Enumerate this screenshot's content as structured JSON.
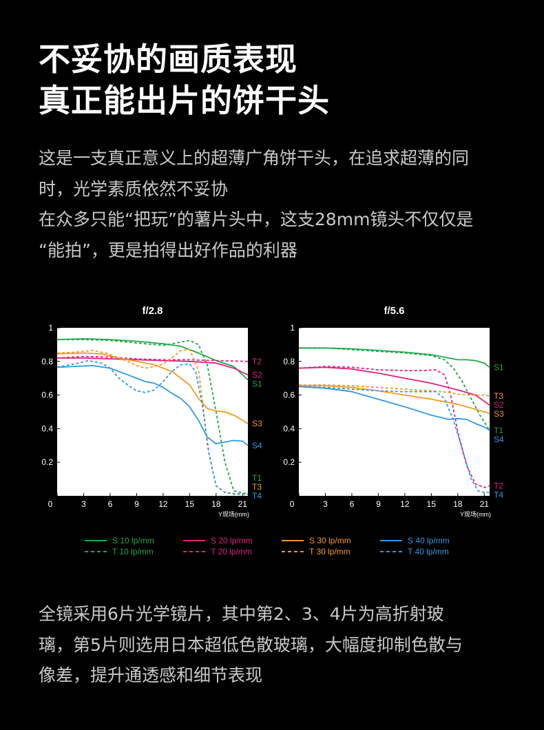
{
  "headline": {
    "line1": "不妥协的画质表现",
    "line2": "真正能出片的饼干头"
  },
  "intro": {
    "line1": "这是一支真正意义上的超薄广角饼干头，在追求超薄的同",
    "line2": "时，光学素质依然不妥协",
    "line3": "在众多只能“把玩”的薯片头中，这支28mm镜头不仅仅是",
    "line4": "“能拍”，更是拍得出好作品的利器"
  },
  "footer": {
    "line1": "全镜采用6片光学镜片，其中第2、3、4片为高折射玻",
    "line2": "璃，第5片则选用日本超低色散玻璃，大幅度抑制色散与",
    "line3": "像差，提升通透感和细节表现"
  },
  "colors": {
    "S10": "#1fa84a",
    "S20": "#e0217e",
    "S30": "#f59a23",
    "S40": "#2f9be5",
    "background": "#000000",
    "panel": "#ffffff"
  },
  "legend": [
    {
      "label": "S 10 lp/mm",
      "color": "#1fa84a",
      "dash": false
    },
    {
      "label": "S 20 lp/mm",
      "color": "#e0217e",
      "dash": false
    },
    {
      "label": "S 30 lp/mm",
      "color": "#f59a23",
      "dash": false
    },
    {
      "label": "S 40 lp/mm",
      "color": "#2f9be5",
      "dash": false
    },
    {
      "label": "T 10 lp/mm",
      "color": "#1fa84a",
      "dash": true
    },
    {
      "label": "T 20 lp/mm",
      "color": "#e0217e",
      "dash": true
    },
    {
      "label": "T 30 lp/mm",
      "color": "#f59a23",
      "dash": true
    },
    {
      "label": "T 40 lp/mm",
      "color": "#2f9be5",
      "dash": true
    }
  ],
  "chart_data": [
    {
      "type": "line",
      "title": "f/2.8",
      "xlabel": "Y现场(mm)",
      "ylabel": "",
      "xlim": [
        0,
        21.6
      ],
      "ylim": [
        0,
        1
      ],
      "xticks": [
        0,
        3,
        6,
        9,
        12,
        15,
        18,
        21
      ],
      "yticks": [
        0.2,
        0.4,
        0.6,
        0.8,
        1
      ],
      "ytick_labels": [
        "0.2",
        "0.4",
        "0.6",
        "0.8",
        "1"
      ],
      "series": [
        {
          "name": "S 10 lp/mm",
          "label": "S1",
          "color": "#1fa84a",
          "dash": false,
          "x": [
            0,
            3,
            6,
            9,
            12,
            14,
            16,
            18,
            20,
            21.6
          ],
          "y": [
            0.93,
            0.935,
            0.93,
            0.92,
            0.905,
            0.89,
            0.85,
            0.805,
            0.77,
            0.69
          ]
        },
        {
          "name": "T 10 lp/mm",
          "label": "T1",
          "color": "#1fa84a",
          "dash": true,
          "x": [
            0,
            3,
            6,
            9,
            12,
            13.5,
            15,
            16,
            17,
            18,
            19,
            20,
            21.6
          ],
          "y": [
            0.93,
            0.93,
            0.925,
            0.91,
            0.895,
            0.91,
            0.925,
            0.9,
            0.78,
            0.5,
            0.2,
            0.03,
            0.01
          ]
        },
        {
          "name": "S 20 lp/mm",
          "label": "S2",
          "color": "#e0217e",
          "dash": false,
          "x": [
            0,
            3,
            6,
            9,
            12,
            15,
            18,
            20,
            21.6
          ],
          "y": [
            0.82,
            0.82,
            0.815,
            0.81,
            0.805,
            0.8,
            0.79,
            0.76,
            0.72
          ]
        },
        {
          "name": "T 20 lp/mm",
          "label": "T2",
          "color": "#e0217e",
          "dash": true,
          "x": [
            0,
            3,
            6,
            9,
            12,
            15,
            18,
            21.6
          ],
          "y": [
            0.82,
            0.83,
            0.825,
            0.815,
            0.81,
            0.81,
            0.805,
            0.8
          ]
        },
        {
          "name": "S 30 lp/mm",
          "label": "S3",
          "color": "#f59a23",
          "dash": false,
          "x": [
            0,
            3,
            5,
            7,
            9,
            11,
            13,
            15,
            16,
            17,
            18,
            19,
            20,
            21,
            21.6
          ],
          "y": [
            0.845,
            0.85,
            0.845,
            0.82,
            0.8,
            0.78,
            0.74,
            0.66,
            0.58,
            0.52,
            0.505,
            0.5,
            0.48,
            0.45,
            0.43
          ]
        },
        {
          "name": "T 30 lp/mm",
          "label": "T3",
          "color": "#f59a23",
          "dash": true,
          "x": [
            0,
            2,
            4,
            5.5,
            7,
            8,
            9,
            10,
            11,
            12,
            13,
            14,
            15,
            16,
            16.5,
            17,
            18,
            19,
            20,
            21.6
          ],
          "y": [
            0.85,
            0.855,
            0.865,
            0.85,
            0.82,
            0.8,
            0.775,
            0.76,
            0.77,
            0.785,
            0.82,
            0.865,
            0.87,
            0.75,
            0.55,
            0.3,
            0.06,
            0.02,
            0.015,
            0.01
          ]
        },
        {
          "name": "S 40 lp/mm",
          "label": "S4",
          "color": "#2f9be5",
          "dash": false,
          "x": [
            0,
            2,
            4,
            6,
            8,
            10,
            11,
            12,
            13,
            14,
            15,
            16,
            17,
            18,
            19,
            20,
            21,
            21.6
          ],
          "y": [
            0.765,
            0.77,
            0.775,
            0.76,
            0.72,
            0.68,
            0.67,
            0.645,
            0.61,
            0.58,
            0.53,
            0.45,
            0.35,
            0.31,
            0.32,
            0.33,
            0.325,
            0.3
          ]
        },
        {
          "name": "T 40 lp/mm",
          "label": "T4",
          "color": "#2f9be5",
          "dash": true,
          "x": [
            0,
            2,
            3.5,
            5,
            6,
            7,
            8,
            9,
            10,
            11,
            12,
            13,
            14,
            15,
            15.7,
            16.5,
            17.2,
            18,
            19,
            20,
            21.6
          ],
          "y": [
            0.765,
            0.785,
            0.805,
            0.79,
            0.76,
            0.7,
            0.66,
            0.625,
            0.615,
            0.63,
            0.68,
            0.74,
            0.78,
            0.785,
            0.74,
            0.52,
            0.25,
            0.06,
            0.02,
            0.01,
            0.01
          ]
        }
      ]
    },
    {
      "type": "line",
      "title": "f/5.6",
      "xlabel": "Y现场(mm)",
      "ylabel": "",
      "xlim": [
        0,
        21.6
      ],
      "ylim": [
        0,
        1
      ],
      "xticks": [
        0,
        3,
        6,
        9,
        12,
        15,
        18,
        21
      ],
      "yticks": [
        0.2,
        0.4,
        0.6,
        0.8,
        1
      ],
      "ytick_labels": [
        "0.2",
        "0.4",
        "0.6",
        "0.8",
        "1"
      ],
      "series": [
        {
          "name": "S 10 lp/mm",
          "label": "S1",
          "color": "#1fa84a",
          "dash": false,
          "x": [
            0,
            3,
            6,
            9,
            12,
            15,
            17,
            18,
            19,
            20,
            21,
            21.6
          ],
          "y": [
            0.88,
            0.88,
            0.875,
            0.865,
            0.855,
            0.84,
            0.82,
            0.81,
            0.81,
            0.805,
            0.79,
            0.765
          ]
        },
        {
          "name": "T 10 lp/mm",
          "label": "T1",
          "color": "#1fa84a",
          "dash": true,
          "x": [
            0,
            3,
            6,
            9,
            12,
            15,
            16.5,
            17.5,
            18.5,
            19.5,
            20.5,
            21.6
          ],
          "y": [
            0.88,
            0.88,
            0.87,
            0.86,
            0.85,
            0.835,
            0.81,
            0.76,
            0.68,
            0.58,
            0.48,
            0.39
          ]
        },
        {
          "name": "S 20 lp/mm",
          "label": "S2",
          "color": "#e0217e",
          "dash": false,
          "x": [
            0,
            3,
            6,
            9,
            12,
            15,
            18,
            20,
            21.6
          ],
          "y": [
            0.76,
            0.765,
            0.755,
            0.73,
            0.7,
            0.67,
            0.63,
            0.6,
            0.54
          ]
        },
        {
          "name": "T 20 lp/mm",
          "label": "T2",
          "color": "#e0217e",
          "dash": true,
          "x": [
            0,
            3,
            6,
            9,
            12,
            14,
            15.5,
            16.5,
            17.2,
            18,
            19,
            20,
            21,
            21.6
          ],
          "y": [
            0.76,
            0.77,
            0.765,
            0.75,
            0.745,
            0.745,
            0.75,
            0.72,
            0.6,
            0.38,
            0.18,
            0.07,
            0.05,
            0.06
          ]
        },
        {
          "name": "S 30 lp/mm",
          "label": "S3",
          "color": "#f59a23",
          "dash": false,
          "x": [
            0,
            3,
            6,
            9,
            12,
            15,
            18,
            20,
            21.6
          ],
          "y": [
            0.655,
            0.655,
            0.645,
            0.625,
            0.6,
            0.575,
            0.545,
            0.515,
            0.49
          ]
        },
        {
          "name": "T 30 lp/mm",
          "label": "T3",
          "color": "#f59a23",
          "dash": true,
          "x": [
            0,
            3,
            6,
            9,
            12,
            15,
            17,
            18,
            19,
            20,
            21,
            21.6
          ],
          "y": [
            0.66,
            0.66,
            0.655,
            0.645,
            0.635,
            0.625,
            0.615,
            0.605,
            0.6,
            0.6,
            0.6,
            0.595
          ]
        },
        {
          "name": "S 40 lp/mm",
          "label": "S4",
          "color": "#2f9be5",
          "dash": false,
          "x": [
            0,
            3,
            6,
            9,
            12,
            15,
            17,
            18,
            19,
            20,
            21,
            21.6
          ],
          "y": [
            0.65,
            0.64,
            0.62,
            0.575,
            0.53,
            0.48,
            0.455,
            0.46,
            0.455,
            0.43,
            0.41,
            0.39
          ]
        },
        {
          "name": "T 40 lp/mm",
          "label": "T4",
          "color": "#2f9be5",
          "dash": true,
          "x": [
            0,
            3,
            6,
            9,
            12,
            14,
            15.5,
            16.5,
            17.5,
            18.5,
            19.5,
            20.3,
            21,
            21.6
          ],
          "y": [
            0.65,
            0.645,
            0.635,
            0.625,
            0.62,
            0.62,
            0.62,
            0.58,
            0.45,
            0.28,
            0.1,
            0.03,
            0.02,
            0.02
          ]
        }
      ]
    }
  ]
}
